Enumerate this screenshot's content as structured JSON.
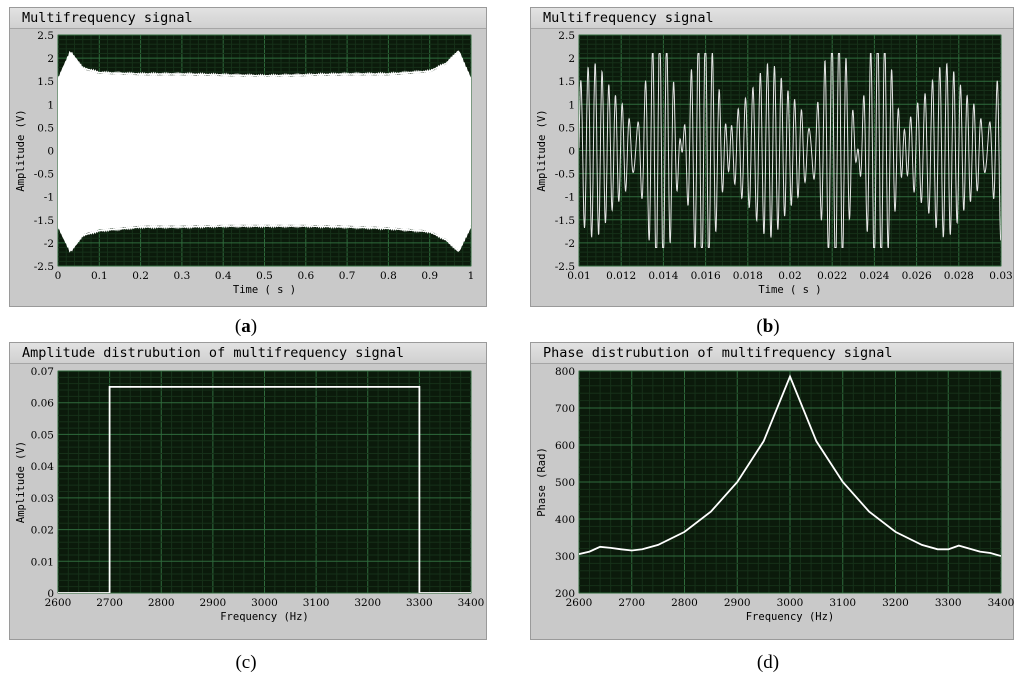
{
  "charts": [
    {
      "id": "a",
      "title": "Multifrequency signal",
      "caption": "(a)",
      "caption_letter": "a",
      "type": "line",
      "xlabel": "Time ( s )",
      "ylabel": "Amplitude (V)",
      "xlim": [
        0,
        1
      ],
      "ylim": [
        -2.5,
        2.5
      ],
      "xticks": [
        "0",
        "0.1",
        "0.2",
        "0.3",
        "0.4",
        "0.5",
        "0.6",
        "0.7",
        "0.8",
        "0.9",
        "1"
      ],
      "yticks": [
        "2.5",
        "2",
        "1.5",
        "1",
        "0.5",
        "0",
        "-0.5",
        "-1",
        "-1.5",
        "-2",
        "-2.5"
      ],
      "envelope": {
        "x": [
          0,
          0.03,
          0.06,
          0.1,
          0.2,
          0.3,
          0.4,
          0.5,
          0.6,
          0.7,
          0.8,
          0.9,
          0.94,
          0.97,
          1
        ],
        "upper": [
          1.5,
          2.1,
          1.75,
          1.65,
          1.62,
          1.62,
          1.6,
          1.58,
          1.6,
          1.62,
          1.62,
          1.68,
          1.85,
          2.12,
          1.5
        ],
        "lower": [
          -1.6,
          -2.15,
          -1.8,
          -1.7,
          -1.62,
          -1.62,
          -1.6,
          -1.6,
          -1.6,
          -1.62,
          -1.65,
          -1.72,
          -1.9,
          -2.15,
          -1.6
        ]
      }
    },
    {
      "id": "b",
      "title": "Multifrequency signal",
      "caption": "(b)",
      "caption_letter": "b",
      "type": "line",
      "xlabel": "Time ( s )",
      "ylabel": "Amplitude (V)",
      "xlim": [
        0.01,
        0.03
      ],
      "ylim": [
        -2.5,
        2.5
      ],
      "xticks": [
        "0.01",
        "0.012",
        "0.014",
        "0.016",
        "0.018",
        "0.02",
        "0.022",
        "0.024",
        "0.026",
        "0.028",
        "0.03"
      ],
      "yticks": [
        "2.5",
        "2",
        "1.5",
        "1",
        "0.5",
        "0",
        "-0.5",
        "-1",
        "-1.5",
        "-2",
        "-2.5"
      ],
      "signal": {
        "f_low_hz": 2700,
        "f_high_hz": 3300,
        "peak_amplitude": 2.1
      }
    },
    {
      "id": "c",
      "title": "Amplitude distrubution of multifrequency signal",
      "caption": "(c)",
      "caption_letter": "c",
      "type": "line",
      "xlabel": "Frequency (Hz)",
      "ylabel": "Amplitude (V)",
      "xlim": [
        2600,
        3400
      ],
      "ylim": [
        0,
        0.07
      ],
      "xticks": [
        "2600",
        "2700",
        "2800",
        "2900",
        "3000",
        "3100",
        "3200",
        "3300",
        "3400"
      ],
      "yticks": [
        "0.07",
        "0.06",
        "0.05",
        "0.04",
        "0.03",
        "0.02",
        "0.01",
        "0"
      ],
      "series": {
        "x": [
          2600,
          2700,
          2700,
          3300,
          3300,
          3400
        ],
        "y": [
          0,
          0,
          0.065,
          0.065,
          0,
          0
        ]
      }
    },
    {
      "id": "d",
      "title": "Phase distrubution of multifrequency signal",
      "caption": "(d)",
      "caption_letter": "d",
      "type": "line",
      "xlabel": "Frequency (Hz)",
      "ylabel": "Phase (Rad)",
      "xlim": [
        2600,
        3400
      ],
      "ylim": [
        200,
        800
      ],
      "xticks": [
        "2600",
        "2700",
        "2800",
        "2900",
        "3000",
        "3100",
        "3200",
        "3300",
        "3400"
      ],
      "yticks": [
        "800",
        "700",
        "600",
        "500",
        "400",
        "300",
        "200"
      ],
      "series": {
        "x": [
          2600,
          2620,
          2640,
          2660,
          2680,
          2700,
          2720,
          2750,
          2800,
          2850,
          2900,
          2950,
          3000,
          3050,
          3100,
          3150,
          3200,
          3250,
          3280,
          3300,
          3320,
          3340,
          3360,
          3380,
          3400
        ],
        "y": [
          305,
          312,
          325,
          322,
          318,
          315,
          318,
          330,
          365,
          420,
          500,
          610,
          785,
          610,
          500,
          420,
          365,
          330,
          318,
          318,
          328,
          320,
          312,
          308,
          300
        ]
      }
    }
  ]
}
